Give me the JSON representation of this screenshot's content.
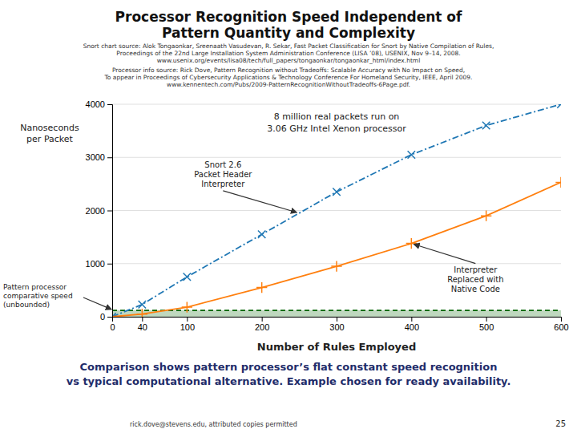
{
  "chart_data": {
    "type": "line",
    "title": [
      "Processor Recognition Speed Independent of",
      "Pattern Quantity and Complexity"
    ],
    "sources": [
      "Snort chart source: Alok Tongaonkar, Sreenaath Vasudevan, R. Sekar, Fast Packet Classification for Snort by Native Compilation of Rules,",
      "Proceedings of the 22nd Large Installation System Administration Conference (LISA ’08), USENIX, Nov 9–14, 2008.",
      "www.usenix.org/events/lisa08/tech/full_papers/tongaonkar/tongaonkar_html/index.html",
      "Processor info source: Rick Dove, Pattern Recognition without Tradeoffs: Scalable Accuracy with No Impact on Speed,",
      "To appear in Proceedings of Cybersecurity Applications & Technology Conference For Homeland Security, IEEE, April 2009.",
      "www.kennentech.com/Pubs/2009-PatternRecognitionWithoutTradeoffs-6Page.pdf."
    ],
    "x_label": "Number of Rules Employed",
    "y_label": [
      "Nanoseconds",
      "per Packet"
    ],
    "x": [
      0,
      40,
      100,
      200,
      300,
      400,
      500,
      600
    ],
    "series": [
      {
        "values": [
          0,
          230,
          750,
          1550,
          2350,
          3050,
          3600,
          4000
        ],
        "marker": "x",
        "line_style": "dashdot"
      },
      {
        "values": [
          0,
          50,
          180,
          550,
          950,
          1380,
          1900,
          2530
        ],
        "marker": "plus",
        "line_style": "solid"
      },
      {
        "type": "area",
        "x": [
          0,
          600
        ],
        "values": [
          120,
          120
        ],
        "color": "#006400",
        "line_style": "dashed"
      }
    ],
    "xlim": [
      0,
      600
    ],
    "ylim": [
      0,
      4000
    ],
    "xticks": [
      0,
      40,
      100,
      200,
      300,
      400,
      500,
      600
    ],
    "yticks": [
      0,
      1000,
      2000,
      3000,
      4000
    ],
    "grid": "y",
    "notes": [
      "8 million real packets run on",
      "3.06 GHz Intel Xenon processor"
    ],
    "annotations": [
      {
        "lines": [
          "Snort 2.6",
          "Packet Header",
          "Interpreter"
        ]
      },
      {
        "lines": [
          "Interpreter",
          "Replaced with",
          "Native Code"
        ]
      },
      {
        "lines": [
          "Pattern processor",
          "comparative speed",
          "(unbounded)"
        ]
      }
    ],
    "caption": [
      "Comparison shows pattern processor’s flat constant speed recognition",
      "vs typical computational alternative. Example chosen for ready availability."
    ],
    "footer": "rick.dove@stevens.edu, attributed copies permitted",
    "page_number": "25"
  }
}
